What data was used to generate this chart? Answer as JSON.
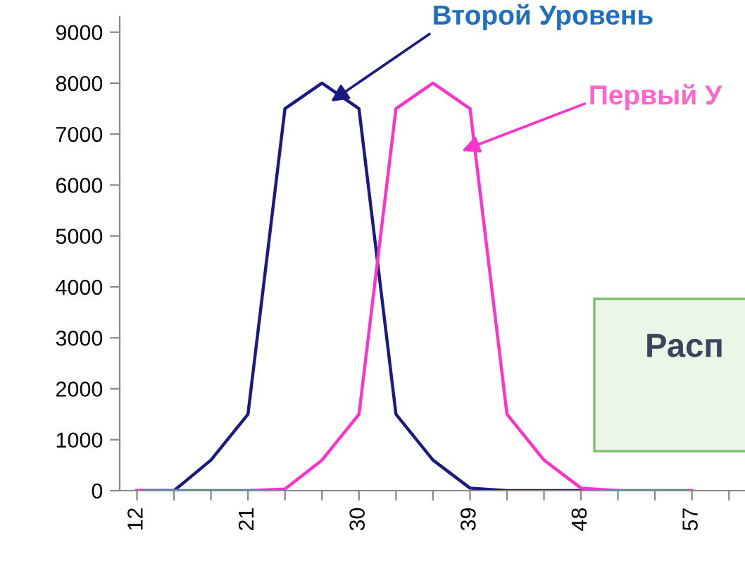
{
  "chart_data": {
    "type": "line",
    "x": [
      12,
      15,
      18,
      21,
      24,
      27,
      30,
      33,
      36,
      39,
      42,
      45,
      48,
      51,
      54,
      57
    ],
    "series": [
      {
        "color": "#1a1a80",
        "values": [
          0,
          0,
          600,
          1500,
          7500,
          8000,
          7500,
          1500,
          600,
          50,
          0,
          0,
          0,
          0,
          null,
          null
        ]
      },
      {
        "color": "#ff33cc",
        "values": [
          0,
          0,
          0,
          0,
          30,
          600,
          1500,
          7500,
          8000,
          7500,
          1500,
          600,
          50,
          0,
          0,
          0
        ]
      }
    ],
    "xlim": [
      10.6,
      61.3
    ],
    "ylim": [
      0,
      9300
    ],
    "xticks": [
      12,
      {
        "value": 15,
        "label": null
      },
      {
        "value": 18,
        "label": null
      },
      21,
      {
        "value": 24,
        "label": null
      },
      {
        "value": 27,
        "label": null
      },
      30,
      {
        "value": 33,
        "label": null
      },
      {
        "value": 36,
        "label": null
      },
      39,
      {
        "value": 42,
        "label": null
      },
      {
        "value": 45,
        "label": null
      },
      48,
      {
        "value": 51,
        "label": null
      },
      {
        "value": 54,
        "label": null
      },
      57,
      {
        "value": 60,
        "label": null
      }
    ],
    "yticks": [
      0,
      1000,
      2000,
      3000,
      4000,
      5000,
      6000,
      7000,
      8000,
      9000
    ],
    "grid": false,
    "legend": false,
    "marker": "none",
    "line_style": "solid",
    "annotations": [
      "Второй Уровень",
      "Первый У",
      "Расп"
    ]
  }
}
